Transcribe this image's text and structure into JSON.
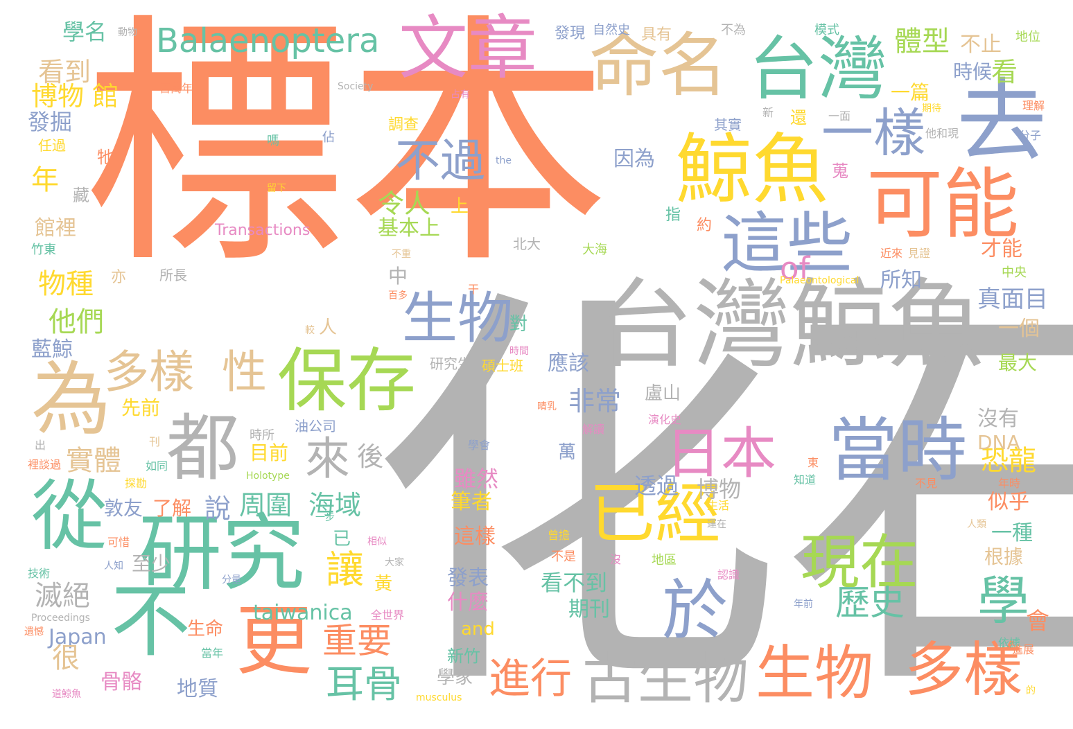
{
  "cloud": {
    "palette": {
      "orange": "#fc8d62",
      "gray": "#b3b3b3",
      "teal": "#66c2a5",
      "blue": "#8da0cb",
      "pink": "#e78ac3",
      "green": "#a6d854",
      "yellow": "#ffd92f",
      "tan": "#e5c494"
    },
    "words": [
      {
        "text": "標本",
        "color": "orange"
      },
      {
        "text": "化石",
        "color": "gray"
      },
      {
        "text": "台灣鯨魚",
        "color": "gray"
      },
      {
        "text": "台灣",
        "color": "teal"
      },
      {
        "text": "去",
        "color": "blue"
      },
      {
        "text": "鯨魚",
        "color": "yellow"
      },
      {
        "text": "可能",
        "color": "orange"
      },
      {
        "text": "文章",
        "color": "pink"
      },
      {
        "text": "命名",
        "color": "tan"
      },
      {
        "text": "一樣",
        "color": "blue"
      },
      {
        "text": "這些",
        "color": "blue"
      },
      {
        "text": "保存",
        "color": "green"
      },
      {
        "text": "研究",
        "color": "teal"
      },
      {
        "text": "為",
        "color": "tan"
      },
      {
        "text": "都",
        "color": "gray"
      },
      {
        "text": "不",
        "color": "teal"
      },
      {
        "text": "從",
        "color": "teal"
      },
      {
        "text": "更",
        "color": "orange"
      },
      {
        "text": "當時",
        "color": "blue"
      },
      {
        "text": "現在",
        "color": "green"
      },
      {
        "text": "已經",
        "color": "yellow"
      },
      {
        "text": "於",
        "color": "blue"
      },
      {
        "text": "日本",
        "color": "pink"
      },
      {
        "text": "生物",
        "color": "blue"
      },
      {
        "text": "生物",
        "color": "orange"
      },
      {
        "text": "多樣",
        "color": "orange"
      },
      {
        "text": "古生物",
        "color": "gray"
      },
      {
        "text": "學",
        "color": "teal"
      },
      {
        "text": "Balaenoptera",
        "color": "teal"
      },
      {
        "text": "不過",
        "color": "blue"
      },
      {
        "text": "多樣",
        "color": "tan"
      },
      {
        "text": "性",
        "color": "tan"
      },
      {
        "text": "來",
        "color": "gray"
      },
      {
        "text": "進行",
        "color": "orange"
      },
      {
        "text": "讓",
        "color": "yellow"
      },
      {
        "text": "耳骨",
        "color": "teal"
      },
      {
        "text": "重要",
        "color": "orange"
      },
      {
        "text": "歷史",
        "color": "teal"
      },
      {
        "text": "體型",
        "color": "green"
      },
      {
        "text": "看到",
        "color": "tan"
      },
      {
        "text": "博物 館",
        "color": "yellow"
      },
      {
        "text": "學名",
        "color": "teal"
      },
      {
        "text": "發掘",
        "color": "blue"
      },
      {
        "text": "年",
        "color": "yellow"
      },
      {
        "text": "物種",
        "color": "yellow"
      },
      {
        "text": "他們",
        "color": "green"
      },
      {
        "text": "實體",
        "color": "tan"
      },
      {
        "text": "滅絕",
        "color": "gray"
      },
      {
        "text": "恐龍",
        "color": "yellow"
      },
      {
        "text": "of",
        "color": "pink"
      },
      {
        "text": "令人",
        "color": "green"
      },
      {
        "text": "基本上",
        "color": "green"
      },
      {
        "text": "非常",
        "color": "blue"
      },
      {
        "text": "說",
        "color": "blue"
      },
      {
        "text": "周圍",
        "color": "teal"
      },
      {
        "text": "海域",
        "color": "teal"
      },
      {
        "text": "taiwanica",
        "color": "teal"
      },
      {
        "text": "Japan",
        "color": "blue"
      },
      {
        "text": "看",
        "color": "green"
      },
      {
        "text": "不止",
        "color": "tan"
      },
      {
        "text": "時候",
        "color": "blue"
      },
      {
        "text": "所知",
        "color": "blue"
      },
      {
        "text": "真面目",
        "color": "blue"
      },
      {
        "text": "一個",
        "color": "tan"
      },
      {
        "text": "最大",
        "color": "green"
      },
      {
        "text": "沒有",
        "color": "gray"
      },
      {
        "text": "DNA",
        "color": "tan"
      },
      {
        "text": "似乎",
        "color": "orange"
      },
      {
        "text": "一種",
        "color": "teal"
      },
      {
        "text": "根據",
        "color": "tan"
      },
      {
        "text": "會",
        "color": "orange"
      },
      {
        "text": "應該",
        "color": "blue"
      },
      {
        "text": "透過",
        "color": "blue"
      },
      {
        "text": "博物",
        "color": "gray"
      },
      {
        "text": "雖然",
        "color": "pink"
      },
      {
        "text": "筆者",
        "color": "yellow"
      },
      {
        "text": "這樣",
        "color": "orange"
      },
      {
        "text": "發表",
        "color": "blue"
      },
      {
        "text": "什麼",
        "color": "pink"
      },
      {
        "text": "and",
        "color": "yellow"
      },
      {
        "text": "看不到",
        "color": "teal"
      },
      {
        "text": "期刊",
        "color": "teal"
      },
      {
        "text": "地質",
        "color": "blue"
      },
      {
        "text": "很",
        "color": "tan"
      },
      {
        "text": "骨骼",
        "color": "pink"
      },
      {
        "text": "生命",
        "color": "orange"
      },
      {
        "text": "敦友",
        "color": "blue"
      },
      {
        "text": "了解",
        "color": "orange"
      },
      {
        "text": "至少",
        "color": "gray"
      },
      {
        "text": "目前",
        "color": "yellow"
      },
      {
        "text": "後",
        "color": "gray"
      },
      {
        "text": "Transactions",
        "color": "pink"
      },
      {
        "text": "藍鯨",
        "color": "blue"
      },
      {
        "text": "館裡",
        "color": "tan"
      },
      {
        "text": "因為",
        "color": "blue"
      },
      {
        "text": "才能",
        "color": "orange"
      },
      {
        "text": "一篇",
        "color": "yellow"
      },
      {
        "text": "先前",
        "color": "yellow"
      },
      {
        "text": "盧山",
        "color": "gray"
      },
      {
        "text": "萬",
        "color": "blue"
      },
      {
        "text": "學家",
        "color": "gray"
      },
      {
        "text": "新竹",
        "color": "teal"
      },
      {
        "text": "中",
        "color": "gray"
      },
      {
        "text": "上",
        "color": "yellow"
      },
      {
        "text": "人",
        "color": "tan"
      },
      {
        "text": "已",
        "color": "teal"
      },
      {
        "text": "黃",
        "color": "yellow"
      },
      {
        "text": "對",
        "color": "teal"
      },
      {
        "text": "藏",
        "color": "gray"
      },
      {
        "text": "牠",
        "color": "orange"
      },
      {
        "text": "任過",
        "color": "yellow"
      },
      {
        "text": "發現",
        "color": "blue"
      },
      {
        "text": "自然史",
        "color": "blue"
      },
      {
        "text": "具有",
        "color": "tan"
      },
      {
        "text": "不為",
        "color": "gray"
      },
      {
        "text": "模式",
        "color": "teal"
      },
      {
        "text": "地位",
        "color": "green"
      },
      {
        "text": "調查",
        "color": "yellow"
      },
      {
        "text": "約",
        "color": "orange"
      },
      {
        "text": "指",
        "color": "teal"
      },
      {
        "text": "還",
        "color": "yellow"
      },
      {
        "text": "蒐",
        "color": "pink"
      },
      {
        "text": "其實",
        "color": "blue"
      },
      {
        "text": "北大",
        "color": "gray"
      },
      {
        "text": "大海",
        "color": "green"
      },
      {
        "text": "竹東",
        "color": "teal"
      },
      {
        "text": "所長",
        "color": "gray"
      },
      {
        "text": "亦",
        "color": "tan"
      },
      {
        "text": "中央",
        "color": "green"
      },
      {
        "text": "研究生",
        "color": "gray"
      },
      {
        "text": "碩士班",
        "color": "yellow"
      },
      {
        "text": "油公司",
        "color": "blue"
      },
      {
        "text": "時所",
        "color": "gray"
      },
      {
        "text": "不是",
        "color": "orange"
      },
      {
        "text": "地區",
        "color": "green"
      },
      {
        "text": "Society",
        "color": "gray"
      },
      {
        "text": "Palaeontological",
        "color": "yellow"
      },
      {
        "text": "Proceedings",
        "color": "gray"
      },
      {
        "text": "musculus",
        "color": "yellow"
      },
      {
        "text": "Holotype",
        "color": "green"
      },
      {
        "text": "the",
        "color": "blue"
      },
      {
        "text": "動物",
        "color": "gray"
      },
      {
        "text": "百萬年",
        "color": "orange"
      },
      {
        "text": "占有",
        "color": "pink"
      },
      {
        "text": "新",
        "color": "gray"
      },
      {
        "text": "一面",
        "color": "gray"
      },
      {
        "text": "他和現",
        "color": "gray"
      },
      {
        "text": "分子",
        "color": "blue"
      },
      {
        "text": "理解",
        "color": "orange"
      },
      {
        "text": "期待",
        "color": "yellow"
      },
      {
        "text": "嗎",
        "color": "teal"
      },
      {
        "text": "佔",
        "color": "blue"
      },
      {
        "text": "留下",
        "color": "yellow"
      },
      {
        "text": "近來",
        "color": "orange"
      },
      {
        "text": "見證",
        "color": "tan"
      },
      {
        "text": "百多",
        "color": "orange"
      },
      {
        "text": "干",
        "color": "orange"
      },
      {
        "text": "較",
        "color": "tan"
      },
      {
        "text": "時間",
        "color": "pink"
      },
      {
        "text": "晴乳",
        "color": "orange"
      },
      {
        "text": "演化史",
        "color": "pink"
      },
      {
        "text": "解讀",
        "color": "pink"
      },
      {
        "text": "學會",
        "color": "blue"
      },
      {
        "text": "知道",
        "color": "teal"
      },
      {
        "text": "不見",
        "color": "orange"
      },
      {
        "text": "年時",
        "color": "orange"
      },
      {
        "text": "生活",
        "color": "yellow"
      },
      {
        "text": "運在",
        "color": "gray"
      },
      {
        "text": "曾擔",
        "color": "yellow"
      },
      {
        "text": "沒",
        "color": "pink"
      },
      {
        "text": "認識",
        "color": "pink"
      },
      {
        "text": "年前",
        "color": "blue"
      },
      {
        "text": "依據",
        "color": "teal"
      },
      {
        "text": "進展",
        "color": "orange"
      },
      {
        "text": "技術",
        "color": "teal"
      },
      {
        "text": "可惜",
        "color": "orange"
      },
      {
        "text": "人知",
        "color": "blue"
      },
      {
        "text": "大家",
        "color": "gray"
      },
      {
        "text": "相似",
        "color": "pink"
      },
      {
        "text": "分量",
        "color": "blue"
      },
      {
        "text": "全世界",
        "color": "pink"
      },
      {
        "text": "當年",
        "color": "teal"
      },
      {
        "text": "刊",
        "color": "tan"
      },
      {
        "text": "如同",
        "color": "teal"
      },
      {
        "text": "探勘",
        "color": "yellow"
      },
      {
        "text": "出",
        "color": "gray"
      },
      {
        "text": "裡談過",
        "color": "orange"
      },
      {
        "text": "遺憾",
        "color": "orange"
      },
      {
        "text": "道鯨魚",
        "color": "pink"
      },
      {
        "text": "一步",
        "color": "teal"
      },
      {
        "text": "東",
        "color": "orange"
      },
      {
        "text": "人類",
        "color": "tan"
      },
      {
        "text": "的",
        "color": "yellow"
      },
      {
        "text": "不重",
        "color": "tan"
      }
    ]
  }
}
